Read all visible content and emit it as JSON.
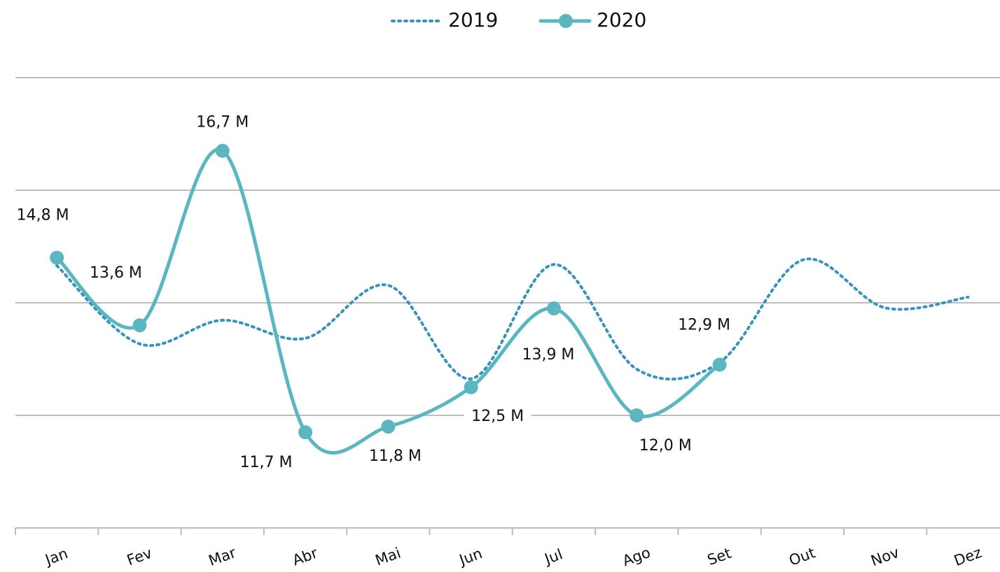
{
  "chart_data": {
    "type": "line",
    "categories": [
      "Jan",
      "Fev",
      "Mar",
      "Abr",
      "Mai",
      "Jun",
      "Jul",
      "Ago",
      "Set",
      "Out",
      "Nov",
      "Dez"
    ],
    "series": [
      {
        "name": "2019",
        "color": "#3a93b8",
        "style": "dotted",
        "values": [
          14.66,
          13.27,
          13.69,
          13.37,
          14.31,
          12.65,
          14.68,
          12.82,
          12.94,
          14.76,
          13.91,
          14.1
        ]
      },
      {
        "name": "2020",
        "color": "#5bb6c0",
        "style": "solid",
        "values": [
          14.8,
          13.6,
          16.7,
          11.7,
          11.8,
          12.5,
          13.9,
          12.0,
          12.9,
          null,
          null,
          null
        ],
        "value_labels": [
          "14,8 M",
          "13,6 M",
          "16,7 M",
          "11,7 M",
          "11,8 M",
          "12,5 M",
          "13,9 M",
          "12,0 M",
          "12,9 M",
          null,
          null,
          null
        ]
      }
    ],
    "ylim": [
      10,
      18
    ],
    "yticks": [
      10,
      12,
      14,
      16,
      18
    ],
    "grid": true,
    "legend": "top"
  }
}
